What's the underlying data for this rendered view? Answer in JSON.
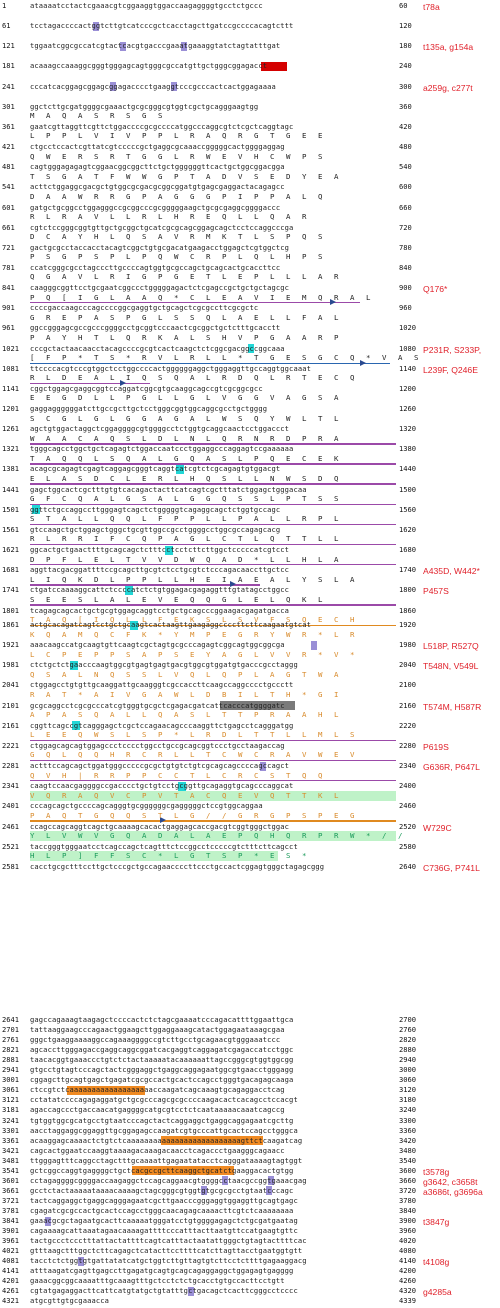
{
  "sequence_rows": [
    {
      "start": "1",
      "seq": "ataaaatcctactcgaaacgtcggaaggtggaccaagaggggtgcctctgccc",
      "end": "60"
    },
    {
      "start": "61",
      "seq": "tcctagaccccactggtcttgtcatcccgctcacctagcttgatccgccccacagtcttt",
      "end": "120"
    },
    {
      "start": "121",
      "seq": "tggaatcggcgccatcgtactcacgtgacccgaaatgaaaggtatctagtatttgat",
      "end": "180"
    },
    {
      "start": "181",
      "seq": "acaaagccaaaggcgggtgggagcagtgggcgccatgttgctgggcggagacct",
      "end": "240"
    },
    {
      "start": "241",
      "seq": "cccatcacggagcggagcggagacccctgaaggtcccgcccactcactggagaaaa",
      "end": "300"
    },
    {
      "start": "301",
      "seq": "ggctcttgcgatggggcgaaactgcgcgggcgtggtcgctgcagggaagtgg",
      "end": "360"
    },
    {
      "start": "361",
      "seq": "gaatcgttaggttcgttctggaccccgcgccccatggcccaggcgtctcgctcaggtagc",
      "end": "420"
    },
    {
      "start": "421",
      "seq": "ctgcctccactcgttatcgtcccccgctgaggcgcaaaccgggggcactggggaggag",
      "end": "480"
    },
    {
      "start": "481",
      "seq": "cagtgggagagagtcggaacggcggcttctgctggggggttcactgctggcggacgga",
      "end": "540"
    },
    {
      "start": "541",
      "seq": "acttctggaggcgacgctgtggcgcgacgcggcggatgtgagcgaggactacagagcc",
      "end": "600"
    },
    {
      "start": "601",
      "seq": "gatgctgcggcctggagggccgcggcccgcgggggaagctgcgcgaggcggggaccc",
      "end": "660"
    },
    {
      "start": "661",
      "seq": "cgtctccgggcggtgttgctgcggctgcatcgcgcagcggagcagctcctccaggcccga",
      "end": "720"
    },
    {
      "start": "721",
      "seq": "gactgcgcctaccacctacagtcggctgtgcgacatgaagacctggagctcgtggctcg",
      "end": "780"
    },
    {
      "start": "781",
      "seq": "ccatcgggcgcctagcccttgccccagtggtgcgccagctgcagcactgcaccttcc",
      "end": "840"
    },
    {
      "start": "841",
      "seq": "caagggcggttcctgcgaatcggccctgggggagactctcgagccgctgctgctagcgc",
      "end": "900"
    },
    {
      "start": "901",
      "seq": "ccccgaccaagcccagccccggcgaggtgctgcagctcgcgccttcgcgctc",
      "end": "960"
    },
    {
      "start": "961",
      "seq": "ggccgggagcgccgcccggggcctgcggtcccaactcgcggctgctctttgcacctt",
      "end": "1020"
    },
    {
      "start": "1021",
      "seq": "cccgctactaacaacctacagccccgcgtcactcaagctctcggcgacggccggcaaa",
      "end": "1080"
    },
    {
      "start": "1081",
      "seq": "ttccccacgtcccgtggctcctggccccactggggggaggctgggaggttgccaggtggcaaat",
      "end": "1140"
    },
    {
      "start": "1141",
      "seq": "cggctggagcgaggcggtccaggatcggcgtgcaaggcagccgtcgcggcgcc",
      "end": "1200"
    },
    {
      "start": "1201",
      "seq": "gaggaggggggatcttgccgcttgctcctgggcggtggcaggcgcctgctgggg",
      "end": "1260"
    },
    {
      "start": "1261",
      "seq": "agctgtggactaggctcggaggggcgtggggcctctggtgcaggcaactcctggaccct",
      "end": "1320"
    },
    {
      "start": "1321",
      "seq": "tgggcagcctggctgctcagagtctggaccaatccctggaggcccaggagtccgaaaaaa",
      "end": "1380"
    },
    {
      "start": "1381",
      "seq": "acagcgcagagtcgagtcaggagcgggtcaggtcatcgtctcgcagagtgtggacgt",
      "end": "1440"
    },
    {
      "start": "1441",
      "seq": "gagctggcactcgctttgtgtcacagactacttcatcagtcgctttatctggagctgggacaa",
      "end": "1500"
    },
    {
      "start": "1501",
      "seq": "ggttctgccaggccttgggagtcagctctgggggtcagaggcagctctggtgccagc",
      "end": "1560"
    },
    {
      "start": "1561",
      "seq": "gtccaagctgctggagctgggctgcgttggccgcctggggcctggcgccagagcacg",
      "end": "1620"
    },
    {
      "start": "1621",
      "seq": "ggcactgctgaacttttgcagcagctctttcctcctcttcttggctcccccatcgtcct",
      "end": "1680"
    },
    {
      "start": "1681",
      "seq": "aggttacgacggattttccgcagcttgcgtctcctgcgtctcccagacaaccttgctcc",
      "end": "1740"
    },
    {
      "start": "1741",
      "seq": "ctgatccaaaaggcattctccccatctctgtggagacgagaggtttgtatagcctggcc",
      "end": "1800"
    },
    {
      "start": "1801",
      "seq": "tcagagcagcactgctgcgtggagcaggtcctgctgcagcccggaagacgagatgacca",
      "end": "1860"
    },
    {
      "start": "1861",
      "seq": "actgcacagatcagtcctgctgcaagtcactaagttgaagaggccccttcttcaagaatgtcat",
      "end": "1920"
    },
    {
      "start": "1921",
      "seq": "aaacaagccatgcaagtgttcaagtcgctagtgcgcccagagtcggcagtggcggcga",
      "end": "1980"
    },
    {
      "start": "1981",
      "seq": "ctctgctctgaacccaagtggcgtgagtgagtgacgtggcgtggatgtgacccgcctaggg",
      "end": "2040"
    },
    {
      "start": "2041",
      "seq": "ctggagcctgtgttgcaaggattgcaagggtcgccaccttcaagccaggcccctgccctt",
      "end": "2100"
    },
    {
      "start": "2101",
      "seq": "gcgcaggcctcgcgcccatcgtgggtgcgctcgagacgatcattcacccatggggatc",
      "end": "2160"
    },
    {
      "start": "2161",
      "seq": "cggttcagccgtcagggagctcgctccagaacagcccaaggttctgagcctcagggatgg",
      "end": "2220"
    },
    {
      "start": "2221",
      "seq": "ctggagcagcagtggagccctcccctggcctgccgcagcggtccctgcctaagaccag",
      "end": "2280"
    },
    {
      "start": "2281",
      "seq": "actttccagcagctggatgggcccccgcgctgtgtctgtcgcagcagccccagccagct",
      "end": "2340"
    },
    {
      "start": "2341",
      "seq": "caagtccaacgaggggccgacccctgctgtcctgcggttgcagaggtgcagcccaggcat",
      "end": "2400"
    },
    {
      "start": "2401",
      "seq": "cccagcagctgccccagcagggtgcggggggcgagggggctccgtggcaggaa",
      "end": "2460"
    },
    {
      "start": "2461",
      "seq": "ccagccagcaggtcagctgcaaaagcacactgaggagcaccgacgtcggtgggctggac",
      "end": "2520"
    },
    {
      "start": "2521",
      "seq": "taccgggtgggaatcctcagccagctcagtttctccggcctcccccgtctttcttcagcct",
      "end": "2580"
    },
    {
      "start": "2581",
      "seq": "cacctgcgctttccttgctcccgctgccagaaccccttccctgccactcggagtgggctagagcggg",
      "end": "2640"
    },
    {
      "start": "2641",
      "seq": "gagccagaaagtaagagctccccactctctagcgaaaatcccagacattttggaattgca",
      "end": "2700"
    },
    {
      "start": "2701",
      "seq": "tattaaggaagcccagaactggaagcttggaggaaagcatactggagaataaagcgaa",
      "end": "2760"
    },
    {
      "start": "2761",
      "seq": "gggctgaaggaaaaggccagaaaggggccgtcttgcctgcagaacgtgggaaatccc",
      "end": "2820"
    },
    {
      "start": "2821",
      "seq": "agcaccttgggagaccgaggcaggcggatcacgaggtcaggagatcgagaccatcctggc",
      "end": "2880"
    },
    {
      "start": "2881",
      "seq": "taacacggtgaaaccctgtctctactaaaaatacaaaaaattagccgggcgtggtggcgg",
      "end": "2940"
    },
    {
      "start": "2941",
      "seq": "gtgcctgtagtcccagctactcgggaggctgaggcaggagaatggcgtgaacctgggagg",
      "end": "3000"
    },
    {
      "start": "3001",
      "seq": "cggagcttgcagtgagctgagatcgcgccactgcactccagcctgggtgacagagcaaga",
      "end": "3060"
    },
    {
      "start": "3061",
      "seq": "ctccgtctcaaaaaaaaaaaaaaaaaaaccaagatcagcaaagtgcagaggacctcag",
      "end": "3120"
    },
    {
      "start": "3121",
      "seq": "cctatatccccagagaggatgctgcgcccagcgcgccccaagacactcacagcctccacgt",
      "end": "3180"
    },
    {
      "start": "3181",
      "seq": "agaccagccctgaccaacatgaggggcatgcgtcctctcaataaaaacaaatcagccg",
      "end": "3240"
    },
    {
      "start": "3241",
      "seq": "tgtggtggcgcatgcctgtaatcccagctactcaggaggctgaggcaggagaatcgcttg",
      "end": "3300"
    },
    {
      "start": "3301",
      "seq": "aacctaggaggcggaggttgcggagagccaagatcgtgcccattgcactccagcctgggca",
      "end": "3360"
    },
    {
      "start": "3361",
      "seq": "acaaggagcaaaactctgtctcaaaaaaaaaaaaaaaaaaaaaaaaaagttctcaagatcag",
      "end": "3420"
    },
    {
      "start": "3421",
      "seq": "cagcactggaatccaaggtaaaagacaaagacaacctcagaccctgaagggcagaacc",
      "end": "3480"
    },
    {
      "start": "3481",
      "seq": "ttgggagtttcaggcctagctttgcaaaattgagaatatacctcagggataaaagtagtggt",
      "end": "3540"
    },
    {
      "start": "3541",
      "seq": "gctcggccaggtgaggggctgctcacgccgcttcaaggctgcatctgaaggacactgtgg",
      "end": "3600"
    },
    {
      "start": "3601",
      "seq": "cctagaggggcggggaccaagaggctccagcaggaacgtggggcctaacgccggtgaaacgag",
      "end": "3660"
    },
    {
      "start": "3661",
      "seq": "gcctctactaaaaataaaacaaaagctagcgggcgtggtgtgcgcgcctgtaatcccagc",
      "end": "3720"
    },
    {
      "start": "3721",
      "seq": "tactcaggaggctgaggcagggagaatcgcttgaacccgggaggtggaggttgcagtgagc",
      "end": "3780"
    },
    {
      "start": "3781",
      "seq": "cgagatcgcgccactgcactccagcctgggcaacagagcaaaacttcgtctcaaaaaaaa",
      "end": "3840"
    },
    {
      "start": "3841",
      "seq": "gaaacgcgctagaatgcacttcaaaaatgggatcctgtggggagagctctgcgatgaatag",
      "end": "3900"
    },
    {
      "start": "3901",
      "seq": "cagaaaagcattaaatagaacaaaagattttcccatttacttaatgttccatgaagtgttc",
      "end": "3960"
    },
    {
      "start": "3961",
      "seq": "tactgccctccctttattactattttcagtcatttactaatattgggctgtagtacttttcac",
      "end": "4020"
    },
    {
      "start": "4021",
      "seq": "gtttaagctttggctcttcagagctcatacttccttttcatcttagttacctgaatggtgtt",
      "end": "4080"
    },
    {
      "start": "4081",
      "seq": "tacctctctggtgtgattatatcatgctggtcttgttagtgtcttcctcttttgagaaggacg",
      "end": "4140"
    },
    {
      "start": "4141",
      "seq": "atttaagatcgagttgagccttgagatgcagtgcagcagaggaggctggagagtgagggg",
      "end": "4200"
    },
    {
      "start": "4201",
      "seq": "gaaacggcggcaaaatttgcaaagtttgctcctctctgcacctgtgccacttcctgtt",
      "end": "4260"
    },
    {
      "start": "4261",
      "seq": "cgtatgagaggacttcattcatgtatgctgtatttgctgacagctcacttcgggcctcccc",
      "end": "4320"
    },
    {
      "start": "4321",
      "seq": "atgcgttgtgcgaaacca",
      "end": "4339"
    }
  ],
  "translation_rows": [
    {
      "anchor": "301",
      "aa": "M A Q A S R S G S"
    },
    {
      "anchor": "361",
      "aa": "L P P L V I V P P L R A Q R G T G E E"
    },
    {
      "anchor": "421",
      "aa": "Q W E R S R T G G L R W E V H C W P S"
    },
    {
      "anchor": "481",
      "aa": "T S G A T F W W G P T A D V S E D Y E A"
    },
    {
      "anchor": "541",
      "aa": "D A A W R R G P A G G G P I P P A L Q"
    },
    {
      "anchor": "601",
      "aa": "R L R A V L L R L H R E Q L L Q A R"
    },
    {
      "anchor": "661",
      "aa": "D C A Y H L Q S A V R M K T L S P Q S"
    },
    {
      "anchor": "721",
      "aa": "P S G P S P L P Q W C R P L Q L H P S"
    },
    {
      "anchor": "781",
      "aa": "Q G A V L R I G P G E T L E P L L L A R"
    },
    {
      "anchor": "841",
      "aa": "P Q [ I G L A A Q * C L E A V I E M Q R A L"
    },
    {
      "anchor": "901",
      "aa": "G R E P A S P G L S S Q L A E L L F A L"
    },
    {
      "anchor": "961",
      "aa": "P A Y H T L Q R K A L S H V P G A A R P"
    },
    {
      "anchor": "1021",
      "aa": "[ F P * T S * R V L R L L * T G E S G C Q * V A S"
    },
    {
      "anchor": "1081",
      "aa": "R L D E A L I Q S Q A L R D Q L R T E C Q"
    },
    {
      "anchor": "1141",
      "aa": "E E G D L L P G L L G L V G G V A G S A"
    },
    {
      "anchor": "1201",
      "aa": "S C G L G L G G A G A L W S Q Y W L T L"
    },
    {
      "anchor": "1261",
      "aa": "W A A C A Q S L D L N L Q R N R D P R A"
    },
    {
      "anchor": "1321",
      "aa": "T A Q Q L S Q A L G Q A S L P Q E C E K"
    },
    {
      "anchor": "1381",
      "aa": "E L A S D C L E R L H Q S L L N W S D Q"
    },
    {
      "anchor": "1441",
      "aa": "G F C Q A L G S A L G G Q S S L P T S S"
    },
    {
      "anchor": "1501",
      "aa": "S T A L L Q Q L F P P L L P A L L R P L"
    },
    {
      "anchor": "1561",
      "aa": "R L R R I F C Q P A G L C T L Q T T L L"
    },
    {
      "anchor": "1621",
      "aa": "D P F L E L T V V D W Q A D * L L H L A"
    },
    {
      "anchor": "1681",
      "aa": "L I Q K D L P P L L H E I A E A L Y S L A"
    },
    {
      "anchor": "1741",
      "aa": "S E E S L A L E V E Q Q G L E L Q K L"
    },
    {
      "anchor": "1801",
      "aa": "T A Q [ I Q L L F E K S L S V F S Q E C H"
    },
    {
      "anchor": "1861",
      "aa": "K Q A M Q C F K * Y M P E G R Y W R * L R"
    },
    {
      "anchor": "1921",
      "aa": "L C P E P P S A P S E Y A G L V V R * V *"
    },
    {
      "anchor": "1981",
      "aa": "Q S A L N Q S S L V Q L Q P L A G T W A"
    },
    {
      "anchor": "2041",
      "aa": "R A T * A I V G A W L D B I L T H * G I"
    },
    {
      "anchor": "2101",
      "aa": "A P A S Q A L L Q A S L T T P R A A H L"
    },
    {
      "anchor": "2161",
      "aa": "L E E Q W S L S P * L R D L T T L L M L S"
    },
    {
      "anchor": "2221",
      "aa": "G Q L Q Q H R C R L L T C W C R A V W E V"
    },
    {
      "anchor": "2281",
      "aa": "Q V H | R R P P C C T L C R C S T Q Q"
    },
    {
      "anchor": "2341",
      "aa": "V Q R A Q V C P V T A C Q E V Q T T K L"
    },
    {
      "anchor": "2401",
      "aa": "P A Q T G Q Q S T L G / / G R G P S P E G"
    },
    {
      "anchor": "2461",
      "aa": "Y L V W V G Q A D A L A E P Q H Q R P R W * / /"
    },
    {
      "anchor": "2521",
      "aa": "H L P ] F F S C * L G T S P * E S *"
    }
  ],
  "annotations": [
    {
      "anchor": "1",
      "text": "t78a"
    },
    {
      "anchor": "121",
      "text": "t135a, g154a"
    },
    {
      "anchor": "241",
      "text": "a259g, c277t"
    },
    {
      "anchor": "841",
      "text": "Q176*"
    },
    {
      "anchor": "1021",
      "text": "P231R, S233P,"
    },
    {
      "anchor": "1081",
      "text": "L239F, Q246E"
    },
    {
      "anchor": "1681",
      "text": "A435D, W442*"
    },
    {
      "anchor": "1741",
      "text": "P457S"
    },
    {
      "anchor": "1921",
      "text": "L518P, R527Q"
    },
    {
      "anchor": "1981",
      "text": "T548N, V549L"
    },
    {
      "anchor": "2101",
      "text": "T574M, H587R"
    },
    {
      "anchor": "2221",
      "text": "P619S"
    },
    {
      "anchor": "2281",
      "text": "G636R, P647L"
    },
    {
      "anchor": "2461",
      "text": "W729C"
    },
    {
      "anchor": "2581",
      "text": "C736G, P741L"
    },
    {
      "anchor": "3541",
      "text": "t3578g"
    },
    {
      "anchor": "3601",
      "text": "g3642, c3658t"
    },
    {
      "anchor": "3661",
      "text": "a3686t, g3696a"
    },
    {
      "anchor": "3841",
      "text": "t3847g"
    },
    {
      "anchor": "4081",
      "text": "t4108g"
    },
    {
      "anchor": "4261",
      "text": "g4285a"
    }
  ],
  "colors": {
    "mutation_highlight": "#22d6d6",
    "variant_highlight": "#9a8fd6",
    "deletion_highlight": "#d40000",
    "polyA_highlight": "#f08a22",
    "annotation_text": "#e0202a",
    "orange_frame_text": "#d88a2a",
    "green_frame_background": "#bff2c8",
    "underline_purple": "#9b4aa8",
    "underline_blue": "#2a66b0"
  }
}
